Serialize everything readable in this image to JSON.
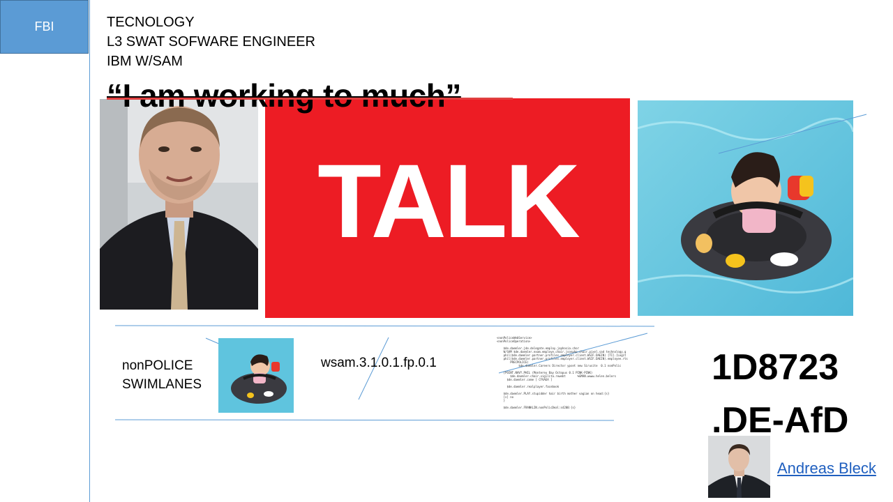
{
  "side_box": {
    "label": "FBI"
  },
  "header": {
    "line1": "TECNOLOGY",
    "line2": "L3 SWAT SOFWARE ENGINEER",
    "line3": "IBM W/SAM",
    "quote": "“I am working to much”"
  },
  "talk_banner": {
    "text": "TALK",
    "color": "#ed1c24"
  },
  "swim": {
    "line1": "nonPOLICE",
    "line2": "SWIMLANES"
  },
  "version": "wsam.3.1.0.1.fp.0.1",
  "code_snippet": "<nonPoliceWebService>\n<nonPoliceOperation>\n\n    $de.daemler.jde.delegate.employ.jophosia.chor\n    W/SAM $de.daemler.exam.employe.chair.jsonphp.chair.pixel.sad technology.g\n    phil($de.daemler.partner.profiles.employer.client.WSIF.DAEIN) [TI].[Logit\n    phil($de.daemler.partner.profiles.employer.client.WSIF.DAEIN).employee.rts\n        PRECPOLICE)\n             $de.daemler.Careers Director ypset new Sirusite  0.1 nonPolic\n\n    [POINT.NAVY.PHIL (Monterey Bay Octopus 0.1 PINK-PINK)\n        $de.daemler.chair.vigilita.rewebt       %GMAN.wwww.helen.belers\n      $de.daemler.come [ CFVAEA ]\n\n      $de.daemler.realplayer.facebook\n\n    $de.daemler.PLAY.stupidder hair birth mother vagian on head:{s}\n    [s] no\n    }\n\n    $de.daemler.FRANKLIN.nonPolicDeal:s4200:{s}\n\n</nonPoliceOperation>",
  "big_code": {
    "line1": "1D8723",
    "line2": ".DE-AfD"
  },
  "person_link": {
    "text": "Andreas Bleck"
  }
}
